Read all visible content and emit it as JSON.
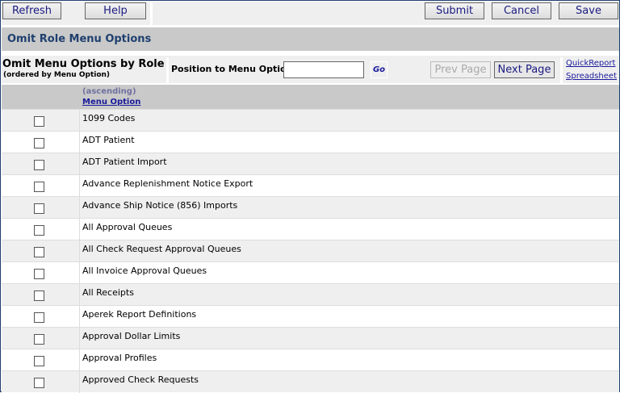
{
  "toolbar": {
    "refresh": "Refresh",
    "help": "Help",
    "submit": "Submit",
    "cancel": "Cancel",
    "save": "Save"
  },
  "title": "Omit Role Menu Options",
  "controls": {
    "heading": "Omit Menu Options by Role",
    "subheading": "(ordered by Menu Option)",
    "position_label": "Position to Menu Option",
    "position_value": "",
    "go": "Go",
    "prev": "Prev Page",
    "next": "Next Page",
    "quickreport": "QuickReport",
    "spreadsheet": "Spreadsheet"
  },
  "table": {
    "sort_order": "(ascending)",
    "column": "Menu Option",
    "rows": [
      "1099 Codes",
      "ADT Patient",
      "ADT Patient Import",
      "Advance Replenishment Notice Export",
      "Advance Ship Notice (856) Imports",
      "All Approval Queues",
      "All Check Request Approval Queues",
      "All Invoice Approval Queues",
      "All Receipts",
      "Aperek Report Definitions",
      "Approval Dollar Limits",
      "Approval Profiles",
      "Approved Check Requests"
    ]
  }
}
